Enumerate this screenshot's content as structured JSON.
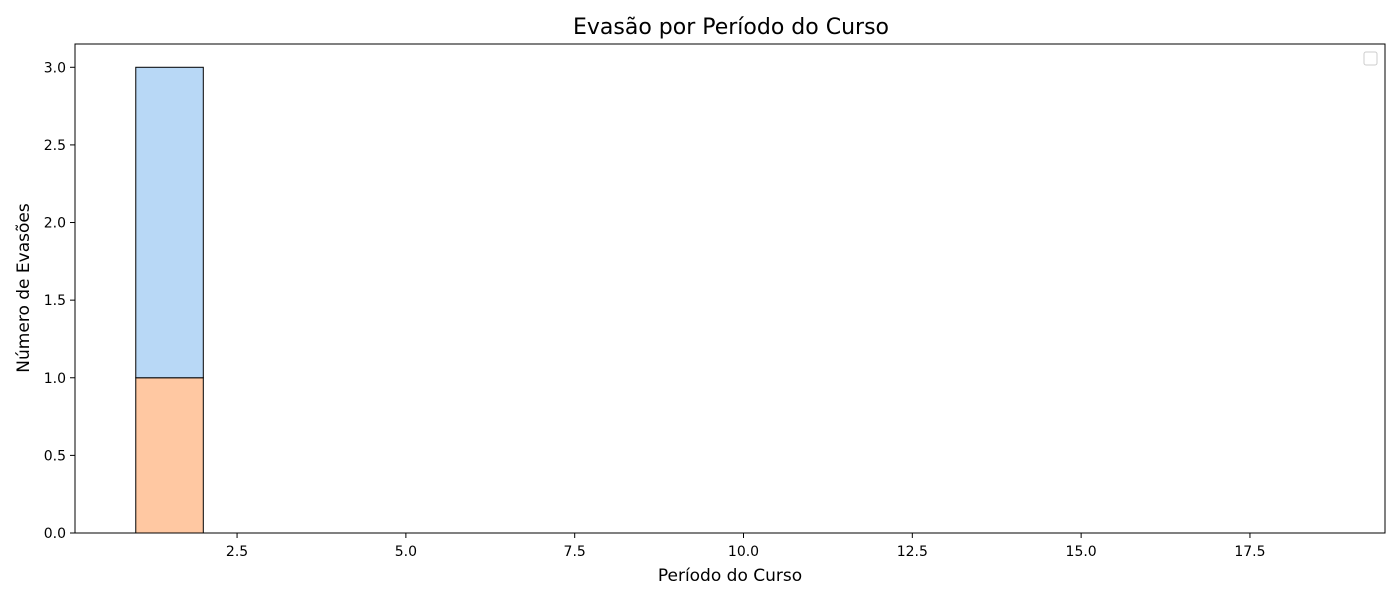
{
  "chart_data": {
    "type": "bar",
    "title": "Evasão por Período do Curso",
    "xlabel": "Período do Curso",
    "ylabel": "Número de Evasões",
    "xlim": [
      0.1,
      19.5
    ],
    "ylim": [
      0,
      3.15
    ],
    "xticks": [
      "2.5",
      "5.0",
      "7.5",
      "10.0",
      "12.5",
      "15.0",
      "17.5"
    ],
    "yticks": [
      "0.0",
      "0.5",
      "1.0",
      "1.5",
      "2.0",
      "2.5",
      "3.0"
    ],
    "bins": [
      [
        1,
        2
      ],
      [
        2,
        3
      ],
      [
        3,
        4
      ],
      [
        4,
        5
      ],
      [
        5,
        6
      ],
      [
        6,
        7
      ],
      [
        7,
        8
      ],
      [
        8,
        9
      ],
      [
        9,
        10
      ],
      [
        10,
        11
      ],
      [
        11,
        12
      ],
      [
        12,
        13
      ],
      [
        13,
        14
      ],
      [
        14,
        15
      ],
      [
        15,
        16
      ],
      [
        16,
        17
      ],
      [
        17,
        18
      ],
      [
        18,
        19
      ]
    ],
    "stacked": true,
    "series": [
      {
        "values": [
          1,
          0,
          0,
          0,
          0,
          0,
          0,
          0,
          0,
          0,
          0,
          0,
          0,
          0,
          0,
          0,
          0,
          0
        ],
        "color": "#ffc8a2"
      },
      {
        "values": [
          2,
          0,
          0,
          0,
          0,
          0,
          0,
          0,
          0,
          0,
          0,
          0,
          0,
          0,
          0,
          0,
          0,
          0
        ],
        "color": "#b8d8f6"
      }
    ],
    "legend": {
      "placement": "upper right",
      "entries": []
    },
    "grid": false
  }
}
